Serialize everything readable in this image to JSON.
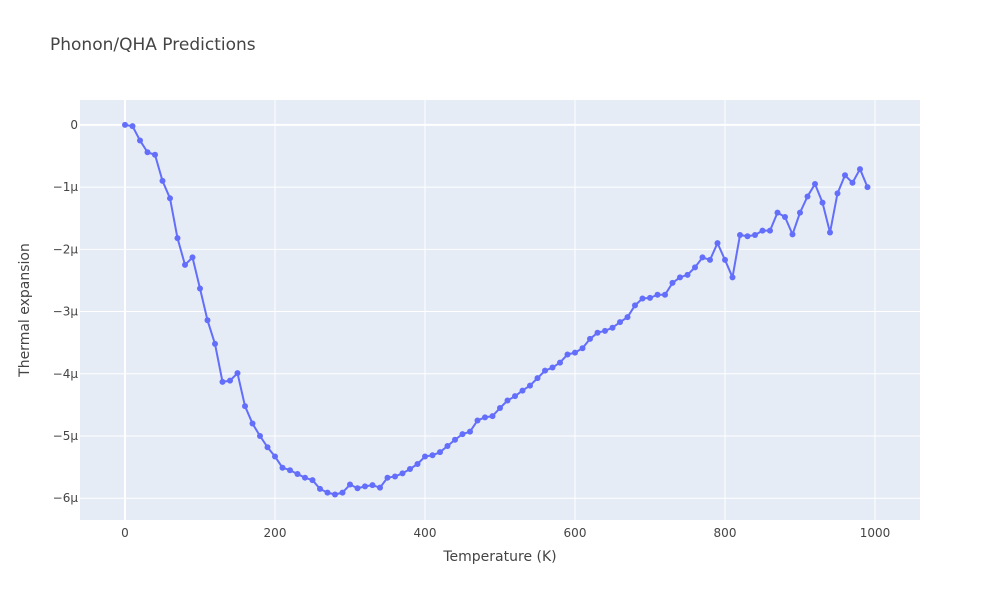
{
  "chart_data": {
    "type": "line",
    "title": "Phonon/QHA Predictions",
    "xlabel": "Temperature (K)",
    "ylabel": "Thermal expansion",
    "xlim": [
      -60,
      1060
    ],
    "ylim": [
      -6.35,
      0.4
    ],
    "x_ticks": [
      0,
      200,
      400,
      600,
      800,
      1000
    ],
    "x_tick_labels": [
      "0",
      "200",
      "400",
      "600",
      "800",
      "1000"
    ],
    "y_ticks": [
      0,
      -1,
      -2,
      -3,
      -4,
      -5,
      -6
    ],
    "y_tick_labels": [
      "0",
      "−1μ",
      "−2μ",
      "−3μ",
      "−4μ",
      "−5μ",
      "−6μ"
    ],
    "y_unit_scale": "μ (×1e-6)",
    "grid": true,
    "legend": "none",
    "line_color": "#636efa",
    "series": [
      {
        "x": [
          0,
          10,
          20,
          30,
          40,
          50,
          60,
          70,
          80,
          90,
          100,
          110,
          120,
          130,
          140,
          150,
          160,
          170,
          180,
          190,
          200,
          210,
          220,
          230,
          240,
          250,
          260,
          270,
          280,
          290,
          300,
          310,
          320,
          330,
          340,
          350,
          360,
          370,
          380,
          390,
          400,
          410,
          420,
          430,
          440,
          450,
          460,
          470,
          480,
          490,
          500,
          510,
          520,
          530,
          540,
          550,
          560,
          570,
          580,
          590,
          600,
          610,
          620,
          630,
          640,
          650,
          660,
          670,
          680,
          690,
          700,
          710,
          720,
          730,
          740,
          750,
          760,
          770,
          780,
          790,
          800,
          810,
          820,
          830,
          840,
          850,
          860,
          870,
          880,
          890,
          900,
          910,
          920,
          930,
          940,
          950,
          960,
          970,
          980,
          990
        ],
        "y": [
          0.0,
          -0.02,
          -0.25,
          -0.44,
          -0.48,
          -0.9,
          -1.18,
          -1.82,
          -2.25,
          -2.13,
          -2.63,
          -3.14,
          -3.52,
          -4.13,
          -4.11,
          -3.99,
          -4.52,
          -4.8,
          -5.0,
          -5.18,
          -5.33,
          -5.51,
          -5.55,
          -5.61,
          -5.67,
          -5.71,
          -5.85,
          -5.91,
          -5.94,
          -5.91,
          -5.78,
          -5.84,
          -5.81,
          -5.79,
          -5.83,
          -5.67,
          -5.65,
          -5.6,
          -5.53,
          -5.45,
          -5.33,
          -5.31,
          -5.26,
          -5.16,
          -5.06,
          -4.97,
          -4.93,
          -4.75,
          -4.7,
          -4.68,
          -4.55,
          -4.43,
          -4.36,
          -4.27,
          -4.19,
          -4.07,
          -3.95,
          -3.9,
          -3.82,
          -3.69,
          -3.66,
          -3.59,
          -3.44,
          -3.34,
          -3.31,
          -3.26,
          -3.17,
          -3.09,
          -2.9,
          -2.79,
          -2.78,
          -2.73,
          -2.73,
          -2.54,
          -2.45,
          -2.41,
          -2.29,
          -2.13,
          -2.17,
          -1.9,
          -2.17,
          -2.45,
          -1.77,
          -1.79,
          -1.77,
          -1.7,
          -1.7,
          -1.41,
          -1.48,
          -1.76,
          -1.41,
          -1.15,
          -0.95,
          -1.25,
          -1.73,
          -1.1,
          -0.81,
          -0.93,
          -0.71,
          -1.0
        ]
      }
    ]
  }
}
